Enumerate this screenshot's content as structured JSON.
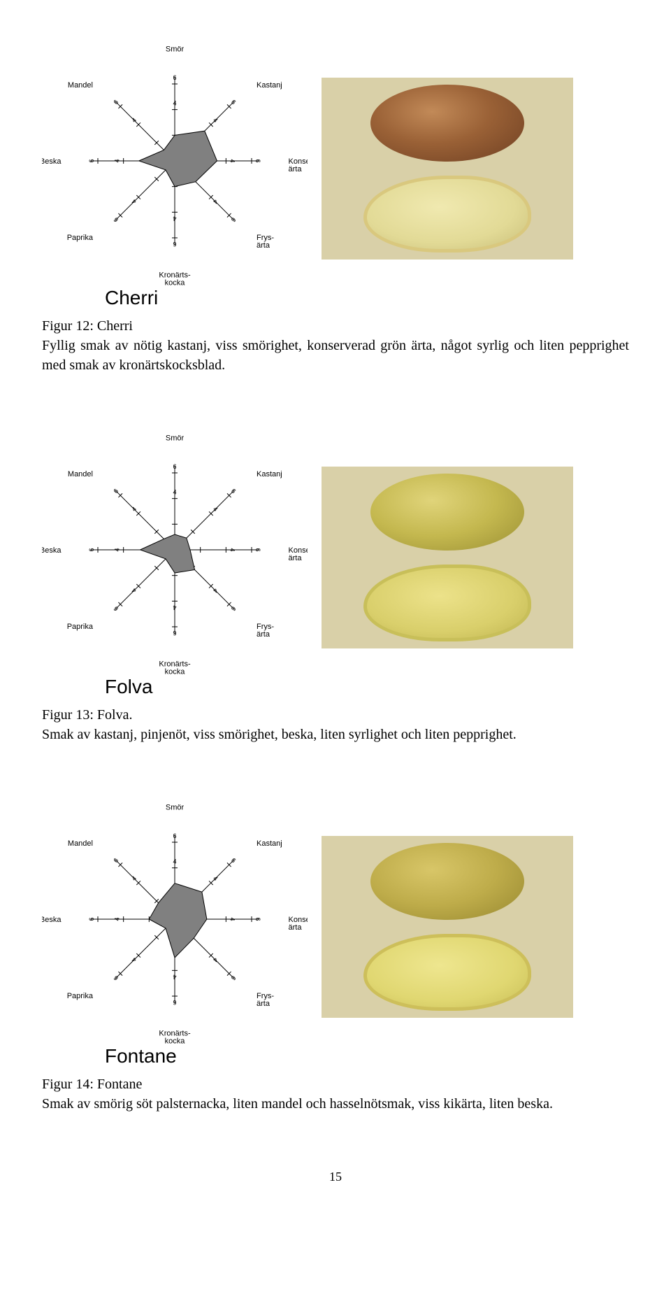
{
  "radar": {
    "axes": [
      "Smör",
      "Kastanj",
      "Konserv-\närta",
      "Frys-\närta",
      "Kronärts-\nkocka",
      "Paprika",
      "Beska",
      "Mandel"
    ],
    "tick_values": [
      2,
      4,
      6
    ],
    "tick_font_size": 9,
    "axis_font_size": 11,
    "fill_color": "#808080",
    "stroke_color": "#000000",
    "background": "#ffffff"
  },
  "figures": [
    {
      "name": "Cherri",
      "caption_title": "Figur 12: Cherri",
      "caption_body": "Fyllig smak av nötig kastanj, viss smörighet, konserverad grön ärta, något syrlig och liten pepprighet med smak av kronärtskocksblad.",
      "values": [
        2.0,
        3.3,
        3.3,
        2.3,
        2.0,
        1.0,
        2.8,
        1.2
      ],
      "whole_color_style": "background: radial-gradient(ellipse at 40% 35%, #c28a58 0%, #9a6136 45%, #6e3f22 100%);",
      "cut_color_style": "background: radial-gradient(ellipse at 45% 40%, #f0e9b0 0%, #e2da96 60%, #c9be79 100%); border: 5px solid #d9c87e;"
    },
    {
      "name": "Folva",
      "caption_title": "Figur 13: Folva.",
      "caption_body": "Smak av kastanj, pinjenöt, viss smörighet, beska, liten syrlighet och liten pepprighet.",
      "values": [
        1.2,
        1.3,
        1.2,
        2.2,
        1.8,
        1.0,
        2.7,
        1.2
      ],
      "whole_color_style": "background: radial-gradient(ellipse at 40% 35%, #e0d47a 0%, #c4b84f 50%, #9a8f33 100%);",
      "cut_color_style": "background: radial-gradient(ellipse at 45% 40%, #ece28a 0%, #d9cf6b 60%, #c0b551 100%); border: 5px solid #c8bf59;"
    },
    {
      "name": "Fontane",
      "caption_title": "Figur 14: Fontane",
      "caption_body": "Smak av smörig söt palsternacka, liten mandel och hasselnötsmak, viss kikärta, liten beska.",
      "values": [
        2.8,
        3.0,
        2.5,
        2.1,
        3.0,
        1.0,
        2.0,
        1.8
      ],
      "whole_color_style": "background: radial-gradient(ellipse at 40% 35%, #d8c668 0%, #beac4a 50%, #978830 100%);",
      "cut_color_style": "background: radial-gradient(ellipse at 45% 40%, #eee68f 0%, #e0d771 60%, #c8be57 100%); border: 5px solid #cdbf5a;"
    }
  ],
  "page_number": "15"
}
